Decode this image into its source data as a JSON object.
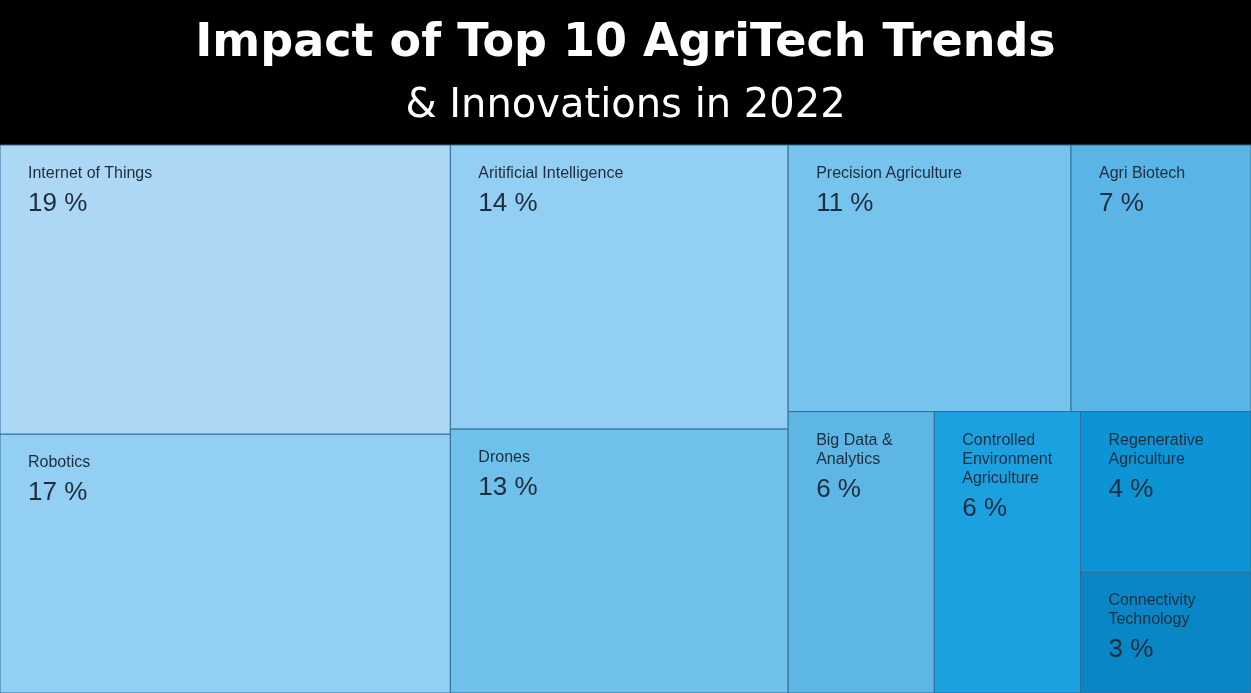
{
  "chart_data": {
    "type": "other",
    "title": "Impact of Top 10 AgriTech Trends",
    "subtitle": "& Innovations in 2022",
    "categories": [
      "Internet of Things",
      "Robotics",
      "Aritificial Intelligence",
      "Drones",
      "Precision Agriculture",
      "Agri Biotech",
      "Big Data & Analytics",
      "Controlled Environment Agriculture",
      "Regenerative Agriculture",
      "Connectivity Technology"
    ],
    "values": [
      19,
      17,
      14,
      13,
      11,
      7,
      6,
      6,
      4,
      3
    ],
    "value_labels": [
      "19 %",
      "17 %",
      "14 %",
      "13 %",
      "11 %",
      "7 %",
      "6 %",
      "6 %",
      "4 %",
      "3 %"
    ],
    "colors": [
      "#acd8f5",
      "#93cff2",
      "#93cff2",
      "#70c0ec",
      "#76c3ee",
      "#5ab5e6",
      "#5eb6e5",
      "#1ca1e0",
      "#0c94d4",
      "#0886c5"
    ]
  }
}
